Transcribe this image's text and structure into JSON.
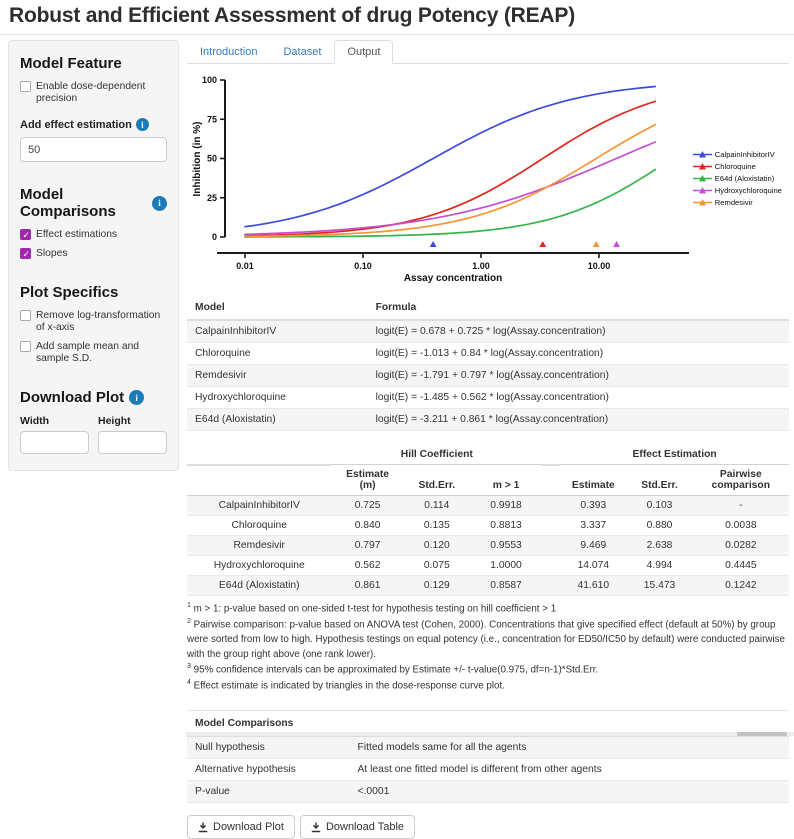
{
  "app": {
    "title": "Robust and Efficient Assessment of drug Potency (REAP)"
  },
  "colors": {
    "link_blue": "#337ab7",
    "info_icon_blue": "#1b7bb9",
    "checkbox_purple": "#a128ad",
    "series_blue": "#3b4cdb",
    "series_red": "#e3261d",
    "series_green": "#35b44a",
    "series_magenta": "#c44ed2",
    "series_orange": "#f49537"
  },
  "sidebar": {
    "model_feature": {
      "heading": "Model Feature",
      "precision_checkbox": "Enable dose-dependent precision",
      "effect_label": "Add effect estimation",
      "effect_value": "50"
    },
    "model_comparisons": {
      "heading": "Model Comparisons",
      "options": [
        "Effect estimations",
        "Slopes"
      ]
    },
    "plot_specifics": {
      "heading": "Plot Specifics",
      "options": [
        "Remove log-transformation of x-axis",
        "Add sample mean and sample S.D."
      ]
    },
    "download_plot": {
      "heading": "Download Plot",
      "width_label": "Width",
      "height_label": "Height"
    }
  },
  "tabs": [
    {
      "label": "Introduction",
      "active": false
    },
    {
      "label": "Dataset",
      "active": false
    },
    {
      "label": "Output",
      "active": true
    }
  ],
  "chart_data": {
    "type": "line",
    "xlabel": "Assay concentration",
    "ylabel": "Inhibition (in %)",
    "x_scale": "log10",
    "x_ticks": [
      "0.01",
      "0.10",
      "1.00",
      "10.00"
    ],
    "y_ticks": [
      0,
      25,
      50,
      75,
      100
    ],
    "ylim": [
      0,
      100
    ],
    "x_range": [
      0.01,
      30
    ],
    "model": "E(%) = 100 / (1 + exp(-(b0 + b1 * ln(x))))",
    "legend_position": "right",
    "triangle_note": "triangles mark effect (ED50) estimates under the x axis",
    "series": [
      {
        "name": "CalpainInhibitorIV",
        "color": "#3b4cdb",
        "b0": 0.678,
        "b1": 0.725,
        "ed50": 0.393
      },
      {
        "name": "Chloroquine",
        "color": "#e3261d",
        "b0": -1.013,
        "b1": 0.84,
        "ed50": 3.337
      },
      {
        "name": "E64d (Aloxistatin)",
        "color": "#35b44a",
        "b0": -3.211,
        "b1": 0.861,
        "ed50": 41.61
      },
      {
        "name": "Hydroxychloroquine",
        "color": "#c44ed2",
        "b0": -1.485,
        "b1": 0.562,
        "ed50": 14.074
      },
      {
        "name": "Remdesivir",
        "color": "#f49537",
        "b0": -1.791,
        "b1": 0.797,
        "ed50": 9.469
      }
    ]
  },
  "formula_table": {
    "headers": [
      "Model",
      "Formula"
    ],
    "rows": [
      [
        "CalpainInhibitorIV",
        "logit(E) = 0.678 + 0.725 * log(Assay.concentration)"
      ],
      [
        "Chloroquine",
        "logit(E) = -1.013 + 0.84 * log(Assay.concentration)"
      ],
      [
        "Remdesivir",
        "logit(E) = -1.791 + 0.797 * log(Assay.concentration)"
      ],
      [
        "Hydroxychloroquine",
        "logit(E) = -1.485 + 0.562 * log(Assay.concentration)"
      ],
      [
        "E64d (Aloxistatin)",
        "logit(E) = -3.211 + 0.861 * log(Assay.concentration)"
      ]
    ]
  },
  "stats_table": {
    "group_headers": [
      "Hill Coefficient",
      "Effect Estimation"
    ],
    "col_headers": [
      "",
      "Estimate (m)",
      "Std.Err.",
      "m > 1",
      "Estimate",
      "Std.Err.",
      "Pairwise comparison"
    ],
    "rows": [
      [
        "CalpainInhibitorIV",
        "0.725",
        "0.114",
        "0.9918",
        "0.393",
        "0.103",
        "-"
      ],
      [
        "Chloroquine",
        "0.840",
        "0.135",
        "0.8813",
        "3.337",
        "0.880",
        "0.0038"
      ],
      [
        "Remdesivir",
        "0.797",
        "0.120",
        "0.9553",
        "9.469",
        "2.638",
        "0.0282"
      ],
      [
        "Hydroxychloroquine",
        "0.562",
        "0.075",
        "1.0000",
        "14.074",
        "4.994",
        "0.4445"
      ],
      [
        "E64d (Aloxistatin)",
        "0.861",
        "0.129",
        "0.8587",
        "41.610",
        "15.473",
        "0.1242"
      ]
    ],
    "footnotes": [
      {
        "sup": "1",
        "text": "m > 1: p-value based on one-sided t-test for hypothesis testing on hill coefficient > 1"
      },
      {
        "sup": "2",
        "text": "Pairwise comparison: p-value based on ANOVA test (Cohen, 2000). Concentrations that give specified effect (default at 50%) by group were sorted from low to high. Hypothesis testings on equal potency (i.e., concentration for ED50/IC50 by default) were conducted pairwise with the group right above (one rank lower)."
      },
      {
        "sup": "3",
        "text": "95% confidence intervals can be approximated by Estimate +/- t-value(0.975, df=n-1)*Std.Err."
      },
      {
        "sup": "4",
        "text": "Effect estimate is indicated by triangles in the dose-response curve plot."
      }
    ]
  },
  "comparison_table": {
    "title": "Model Comparisons",
    "rows": [
      [
        "Null hypothesis",
        "Fitted models same for all the agents"
      ],
      [
        "Alternative hypothesis",
        "At least one fitted model is different from other agents"
      ],
      [
        "P-value",
        "<.0001"
      ]
    ]
  },
  "buttons": {
    "download_plot": "Download Plot",
    "download_table": "Download Table"
  }
}
